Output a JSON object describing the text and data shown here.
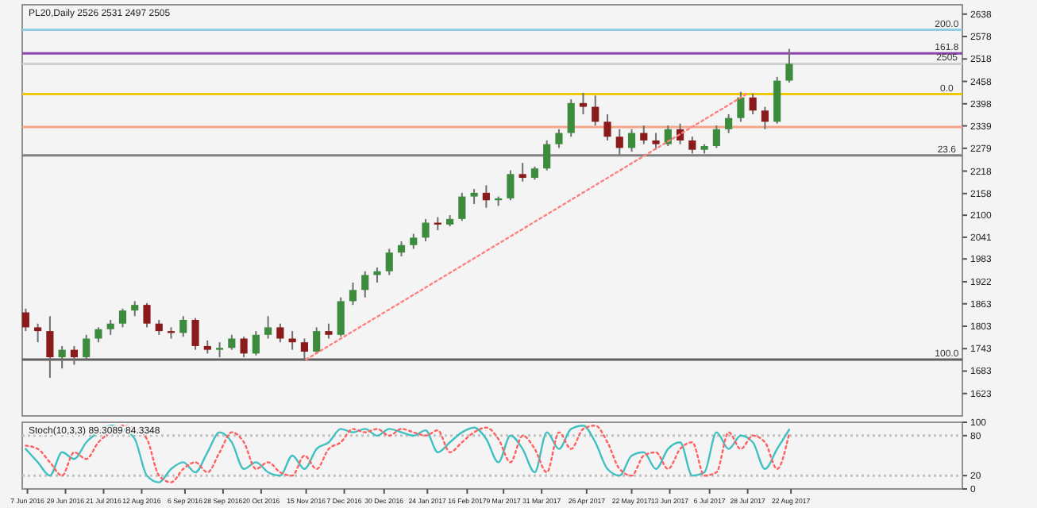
{
  "chart_data": [
    {
      "type": "candlestick",
      "title": "PL20,Daily  2526 2531 2497 2505",
      "tick_labels": "y",
      "grid": false,
      "x": [
        "2016-06-06",
        "2016-06-13",
        "2016-06-20",
        "2016-06-27",
        "2016-07-04",
        "2016-07-11",
        "2016-07-18",
        "2016-07-25",
        "2016-08-01",
        "2016-08-08",
        "2016-08-15",
        "2016-08-22",
        "2016-08-29",
        "2016-09-05",
        "2016-09-12",
        "2016-09-19",
        "2016-09-26",
        "2016-10-03",
        "2016-10-10",
        "2016-10-17",
        "2016-10-24",
        "2016-10-31",
        "2016-11-07",
        "2016-11-14",
        "2016-11-21",
        "2016-11-28",
        "2016-12-05",
        "2016-12-12",
        "2016-12-19",
        "2016-12-26",
        "2017-01-02",
        "2017-01-09",
        "2017-01-16",
        "2017-01-23",
        "2017-01-30",
        "2017-02-06",
        "2017-02-13",
        "2017-02-20",
        "2017-02-27",
        "2017-03-06",
        "2017-03-13",
        "2017-03-20",
        "2017-03-27",
        "2017-04-03",
        "2017-04-10",
        "2017-04-17",
        "2017-04-24",
        "2017-05-01",
        "2017-05-08",
        "2017-05-15",
        "2017-05-22",
        "2017-05-29",
        "2017-06-05",
        "2017-06-12",
        "2017-06-19",
        "2017-06-26",
        "2017-07-03",
        "2017-07-10",
        "2017-07-17",
        "2017-07-24",
        "2017-07-31",
        "2017-08-07",
        "2017-08-14",
        "2017-08-21"
      ],
      "ohlc": [
        [
          1840,
          1850,
          1790,
          1800
        ],
        [
          1800,
          1810,
          1760,
          1790
        ],
        [
          1790,
          1830,
          1665,
          1720
        ],
        [
          1720,
          1750,
          1690,
          1740
        ],
        [
          1740,
          1750,
          1700,
          1720
        ],
        [
          1720,
          1780,
          1715,
          1770
        ],
        [
          1770,
          1800,
          1760,
          1795
        ],
        [
          1795,
          1820,
          1780,
          1810
        ],
        [
          1810,
          1850,
          1800,
          1845
        ],
        [
          1845,
          1870,
          1830,
          1860
        ],
        [
          1860,
          1865,
          1800,
          1810
        ],
        [
          1810,
          1820,
          1780,
          1790
        ],
        [
          1790,
          1800,
          1770,
          1785
        ],
        [
          1785,
          1830,
          1775,
          1820
        ],
        [
          1820,
          1825,
          1740,
          1750
        ],
        [
          1750,
          1765,
          1730,
          1740
        ],
        [
          1740,
          1760,
          1720,
          1745
        ],
        [
          1745,
          1780,
          1740,
          1770
        ],
        [
          1770,
          1775,
          1720,
          1730
        ],
        [
          1730,
          1790,
          1725,
          1780
        ],
        [
          1780,
          1830,
          1770,
          1800
        ],
        [
          1800,
          1810,
          1760,
          1770
        ],
        [
          1770,
          1790,
          1740,
          1760
        ],
        [
          1760,
          1770,
          1710,
          1735
        ],
        [
          1735,
          1800,
          1730,
          1790
        ],
        [
          1790,
          1810,
          1770,
          1780
        ],
        [
          1780,
          1880,
          1775,
          1870
        ],
        [
          1870,
          1920,
          1860,
          1900
        ],
        [
          1900,
          1950,
          1880,
          1940
        ],
        [
          1940,
          1960,
          1920,
          1950
        ],
        [
          1950,
          2010,
          1940,
          2000
        ],
        [
          2000,
          2030,
          1990,
          2020
        ],
        [
          2020,
          2050,
          2010,
          2040
        ],
        [
          2040,
          2090,
          2030,
          2080
        ],
        [
          2080,
          2095,
          2060,
          2075
        ],
        [
          2075,
          2100,
          2070,
          2090
        ],
        [
          2090,
          2160,
          2085,
          2150
        ],
        [
          2150,
          2170,
          2130,
          2160
        ],
        [
          2160,
          2180,
          2120,
          2140
        ],
        [
          2140,
          2150,
          2125,
          2145
        ],
        [
          2145,
          2220,
          2140,
          2210
        ],
        [
          2210,
          2240,
          2190,
          2200
        ],
        [
          2200,
          2230,
          2195,
          2225
        ],
        [
          2225,
          2300,
          2220,
          2290
        ],
        [
          2290,
          2330,
          2280,
          2320
        ],
        [
          2320,
          2410,
          2310,
          2400
        ],
        [
          2400,
          2427,
          2370,
          2390
        ],
        [
          2390,
          2420,
          2340,
          2350
        ],
        [
          2350,
          2370,
          2300,
          2310
        ],
        [
          2310,
          2330,
          2262,
          2280
        ],
        [
          2280,
          2330,
          2270,
          2320
        ],
        [
          2320,
          2340,
          2290,
          2300
        ],
        [
          2300,
          2320,
          2275,
          2290
        ],
        [
          2290,
          2340,
          2285,
          2330
        ],
        [
          2330,
          2345,
          2290,
          2300
        ],
        [
          2300,
          2310,
          2265,
          2275
        ],
        [
          2275,
          2290,
          2265,
          2285
        ],
        [
          2285,
          2340,
          2280,
          2330
        ],
        [
          2330,
          2370,
          2320,
          2360
        ],
        [
          2360,
          2430,
          2350,
          2415
        ],
        [
          2415,
          2425,
          2370,
          2380
        ],
        [
          2380,
          2390,
          2330,
          2350
        ],
        [
          2350,
          2470,
          2345,
          2460
        ],
        [
          2460,
          2545,
          2455,
          2505
        ]
      ],
      "series": [
        {
          "type": "line",
          "color": "#ff8080",
          "line_style": "dotted",
          "x": [
            "2016-11-15",
            "2017-07-27"
          ],
          "values": [
            1714,
            2423
          ]
        }
      ],
      "xlim": [
        "2016-06-04",
        "2017-11-29"
      ],
      "ylim": [
        1563,
        2663
      ],
      "yticks": [
        2638,
        2578,
        2518,
        2458,
        2398,
        2339,
        2279,
        2218,
        2158,
        2100,
        2041,
        1983,
        1922,
        1863,
        1803,
        1743,
        1683,
        1623
      ],
      "ref_lines": [
        {
          "axis": "y",
          "value": 2596,
          "color": "#8fd0e0"
        },
        {
          "axis": "y",
          "value": 2533,
          "color": "#8e44ad"
        },
        {
          "axis": "y",
          "value": 2505,
          "label": "2505",
          "color": "#d0d0d0"
        },
        {
          "axis": "y",
          "value": 2424,
          "color": "#f0c800"
        },
        {
          "axis": "y",
          "value": 2336,
          "color": "#f4a58a"
        },
        {
          "axis": "y",
          "value": 2260,
          "color": "#808080"
        },
        {
          "axis": "y",
          "value": 1714,
          "color": "#606060"
        }
      ],
      "annotations": [
        {
          "text": "200.0",
          "x": "2017-11-20",
          "y": 2596
        },
        {
          "text": "161.8",
          "x": "2017-11-20",
          "y": 2533
        },
        {
          "text": "0.0",
          "x": "2017-11-20",
          "y": 2424
        },
        {
          "text": "23.6",
          "x": "2017-11-20",
          "y": 2260
        },
        {
          "text": "100.0",
          "x": "2017-11-20",
          "y": 1714
        }
      ]
    },
    {
      "type": "line",
      "title": "Stoch(10,3,3) 89.3089 84.3348",
      "grid": false,
      "marker": "none",
      "x": [
        "2016-06-06",
        "2016-06-13",
        "2016-06-20",
        "2016-06-27",
        "2016-07-04",
        "2016-07-11",
        "2016-07-18",
        "2016-07-25",
        "2016-08-01",
        "2016-08-08",
        "2016-08-15",
        "2016-08-22",
        "2016-08-29",
        "2016-09-05",
        "2016-09-12",
        "2016-09-19",
        "2016-09-26",
        "2016-10-03",
        "2016-10-10",
        "2016-10-17",
        "2016-10-24",
        "2016-10-31",
        "2016-11-07",
        "2016-11-14",
        "2016-11-21",
        "2016-11-28",
        "2016-12-05",
        "2016-12-12",
        "2016-12-19",
        "2016-12-26",
        "2017-01-02",
        "2017-01-09",
        "2017-01-16",
        "2017-01-23",
        "2017-01-30",
        "2017-02-06",
        "2017-02-13",
        "2017-02-20",
        "2017-02-27",
        "2017-03-06",
        "2017-03-13",
        "2017-03-20",
        "2017-03-27",
        "2017-04-03",
        "2017-04-10",
        "2017-04-17",
        "2017-04-24",
        "2017-05-01",
        "2017-05-08",
        "2017-05-15",
        "2017-05-22",
        "2017-05-29",
        "2017-06-05",
        "2017-06-12",
        "2017-06-19",
        "2017-06-26",
        "2017-07-03",
        "2017-07-10",
        "2017-07-17",
        "2017-07-24",
        "2017-07-31",
        "2017-08-07",
        "2017-08-14",
        "2017-08-21"
      ],
      "series": [
        {
          "color": "#40c0c0",
          "line_style": "solid",
          "values": [
            60,
            40,
            20,
            55,
            45,
            70,
            85,
            95,
            90,
            75,
            20,
            10,
            30,
            40,
            25,
            55,
            85,
            70,
            30,
            40,
            25,
            20,
            50,
            30,
            60,
            70,
            90,
            85,
            90,
            80,
            90,
            85,
            80,
            88,
            55,
            70,
            85,
            92,
            75,
            40,
            80,
            60,
            25,
            85,
            60,
            90,
            95,
            70,
            30,
            20,
            50,
            55,
            30,
            60,
            70,
            20,
            25,
            85,
            60,
            80,
            70,
            30,
            60,
            89
          ]
        },
        {
          "color": "#ff6060",
          "line_style": "dotted",
          "values": [
            65,
            60,
            40,
            20,
            55,
            45,
            70,
            85,
            95,
            90,
            75,
            20,
            10,
            30,
            40,
            25,
            55,
            85,
            70,
            30,
            40,
            25,
            20,
            50,
            30,
            60,
            70,
            90,
            85,
            90,
            80,
            90,
            85,
            80,
            88,
            55,
            70,
            85,
            92,
            75,
            40,
            80,
            60,
            25,
            85,
            60,
            90,
            95,
            70,
            30,
            20,
            50,
            55,
            30,
            60,
            70,
            20,
            25,
            85,
            60,
            80,
            70,
            30,
            84
          ]
        }
      ],
      "xlim": [
        "2016-06-04",
        "2017-11-29"
      ],
      "xticks": [
        {
          "value": "2016-06-07",
          "label": "7 Jun 2016"
        },
        {
          "value": "2016-06-29",
          "label": "29 Jun 2016"
        },
        {
          "value": "2016-07-21",
          "label": "21 Jul 2016"
        },
        {
          "value": "2016-08-12",
          "label": "12 Aug 2016"
        },
        {
          "value": "2016-09-06",
          "label": "6 Sep 2016"
        },
        {
          "value": "2016-09-28",
          "label": "28 Sep 2016"
        },
        {
          "value": "2016-10-20",
          "label": "20 Oct 2016"
        },
        {
          "value": "2016-11-15",
          "label": "15 Nov 2016"
        },
        {
          "value": "2016-12-07",
          "label": "7 Dec 2016"
        },
        {
          "value": "2016-12-30",
          "label": "30 Dec 2016"
        },
        {
          "value": "2017-01-24",
          "label": "24 Jan 2017"
        },
        {
          "value": "2017-02-16",
          "label": "16 Feb 2017"
        },
        {
          "value": "2017-03-09",
          "label": "9 Mar 2017"
        },
        {
          "value": "2017-03-31",
          "label": "31 Mar 2017"
        },
        {
          "value": "2017-04-26",
          "label": "26 Apr 2017"
        },
        {
          "value": "2017-05-22",
          "label": "22 May 2017"
        },
        {
          "value": "2017-06-13",
          "label": "13 Jun 2017"
        },
        {
          "value": "2017-07-06",
          "label": "6 Jul 2017"
        },
        {
          "value": "2017-07-28",
          "label": "28 Jul 2017"
        },
        {
          "value": "2017-08-22",
          "label": "22 Aug 2017"
        }
      ],
      "ylim": [
        0,
        100
      ],
      "yticks": [
        100,
        80,
        20,
        0
      ],
      "ref_lines": [
        {
          "axis": "y",
          "value": 80,
          "color": "#c0c0c0",
          "line_style": "dotted"
        },
        {
          "axis": "y",
          "value": 20,
          "color": "#c0c0c0",
          "line_style": "dotted"
        }
      ]
    }
  ]
}
